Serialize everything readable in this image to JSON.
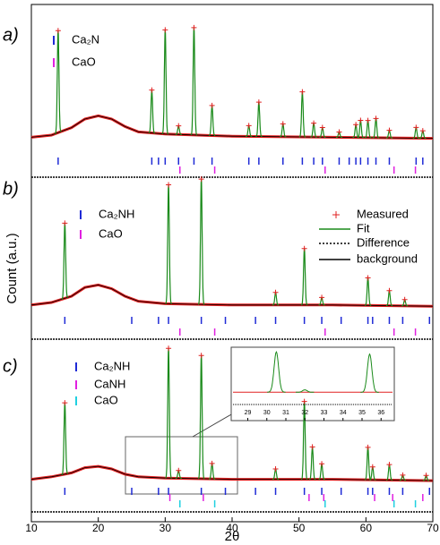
{
  "chart_data": {
    "type": "line",
    "x_label": "2θ",
    "y_label": "Count (a.u.)",
    "xlim": [
      10,
      70
    ],
    "xticks": [
      10,
      20,
      30,
      40,
      50,
      60,
      70
    ],
    "legend": [
      {
        "name": "Measured",
        "color": "#e02020"
      },
      {
        "name": "Fit",
        "color": "#1a8a1a"
      },
      {
        "name": "Difference",
        "color": "#000000"
      },
      {
        "name": "background",
        "color": "#000000"
      }
    ],
    "panels": [
      {
        "label": "a)",
        "background": {
          "x": [
            10,
            13,
            16,
            18,
            20,
            22,
            24,
            26,
            30,
            40,
            55,
            70
          ],
          "values": [
            3,
            5,
            12,
            20,
            23,
            20,
            13,
            8,
            6,
            4,
            3,
            2
          ]
        },
        "peaks": {
          "x": [
            14,
            28,
            30,
            32,
            34.3,
            37,
            42.5,
            44,
            47.6,
            50.5,
            52.2,
            53.5,
            56,
            58.5,
            59.2,
            60.3,
            61.5,
            63.5,
            67.5,
            68.5
          ],
          "values": [
            95,
            40,
            97,
            8,
            100,
            28,
            10,
            32,
            12,
            42,
            13,
            9,
            5,
            12,
            16,
            16,
            18,
            7,
            10,
            7
          ]
        },
        "phases": [
          {
            "name": "Ca₂N",
            "color": "#1f2bd6",
            "positions": [
              14,
              28,
              29,
              30,
              32,
              34.3,
              37,
              42.5,
              44,
              47.6,
              50.5,
              52.2,
              53.5,
              56,
              57.5,
              58.5,
              59.2,
              60.3,
              61.5,
              63.5,
              67.5,
              68.5
            ]
          },
          {
            "name": "CaO",
            "color": "#e020e0",
            "positions": [
              32.2,
              37.4,
              53.9,
              64.2,
              67.4
            ]
          }
        ]
      },
      {
        "label": "b)",
        "background": {
          "x": [
            10,
            13,
            16,
            18,
            20,
            22,
            24,
            26,
            30,
            40,
            55,
            70
          ],
          "values": [
            3,
            5,
            10,
            17,
            19,
            16,
            10,
            6,
            4,
            3,
            3,
            2
          ]
        },
        "peaks": {
          "x": [
            15,
            30.5,
            35.4,
            46.5,
            50.8,
            53.4,
            60.3,
            63.5,
            65.8
          ],
          "values": [
            60,
            95,
            100,
            10,
            45,
            6,
            22,
            12,
            5
          ]
        },
        "phases": [
          {
            "name": "Ca₂NH",
            "color": "#1f2bd6",
            "positions": [
              15,
              25,
              29,
              30.5,
              35.4,
              39,
              43.5,
              46.5,
              50.8,
              53.4,
              56.3,
              60.3,
              61,
              63.5,
              65.5,
              69.5
            ]
          },
          {
            "name": "CaO",
            "color": "#e020e0",
            "positions": [
              32.2,
              37.4,
              53.9,
              64.2,
              67.4
            ]
          }
        ]
      },
      {
        "label": "c)",
        "background": {
          "x": [
            10,
            13,
            16,
            18,
            20,
            22,
            24,
            26,
            30,
            40,
            55,
            70
          ],
          "values": [
            3,
            5,
            8,
            12,
            13,
            11,
            7,
            5,
            4,
            3,
            3,
            2
          ]
        },
        "peaks": {
          "x": [
            15,
            30.5,
            32,
            35.4,
            37,
            46.5,
            50.8,
            52,
            53.4,
            60.3,
            61,
            63.5,
            65.5,
            69
          ],
          "values": [
            55,
            100,
            6,
            95,
            12,
            8,
            60,
            25,
            12,
            25,
            10,
            12,
            4,
            4
          ]
        },
        "phases": [
          {
            "name": "Ca₂NH",
            "color": "#1f2bd6",
            "positions": [
              15,
              25,
              29,
              30.5,
              35.4,
              39,
              43.5,
              46.5,
              50.8,
              53.4,
              56.3,
              60.3,
              61,
              63.5,
              65.5,
              69.5
            ]
          },
          {
            "name": "CaNH",
            "color": "#e020e0",
            "positions": [
              30.7,
              35.7,
              51.5,
              53.7,
              61.3,
              64,
              68.5
            ]
          },
          {
            "name": "CaO",
            "color": "#20d0e0",
            "positions": [
              32.2,
              37.4,
              53.9,
              64.2,
              67.4
            ]
          }
        ]
      }
    ],
    "inset": {
      "xlim": [
        28.6,
        36.6
      ],
      "xticks": [
        29,
        30,
        31,
        32,
        33,
        34,
        35,
        36
      ]
    }
  }
}
